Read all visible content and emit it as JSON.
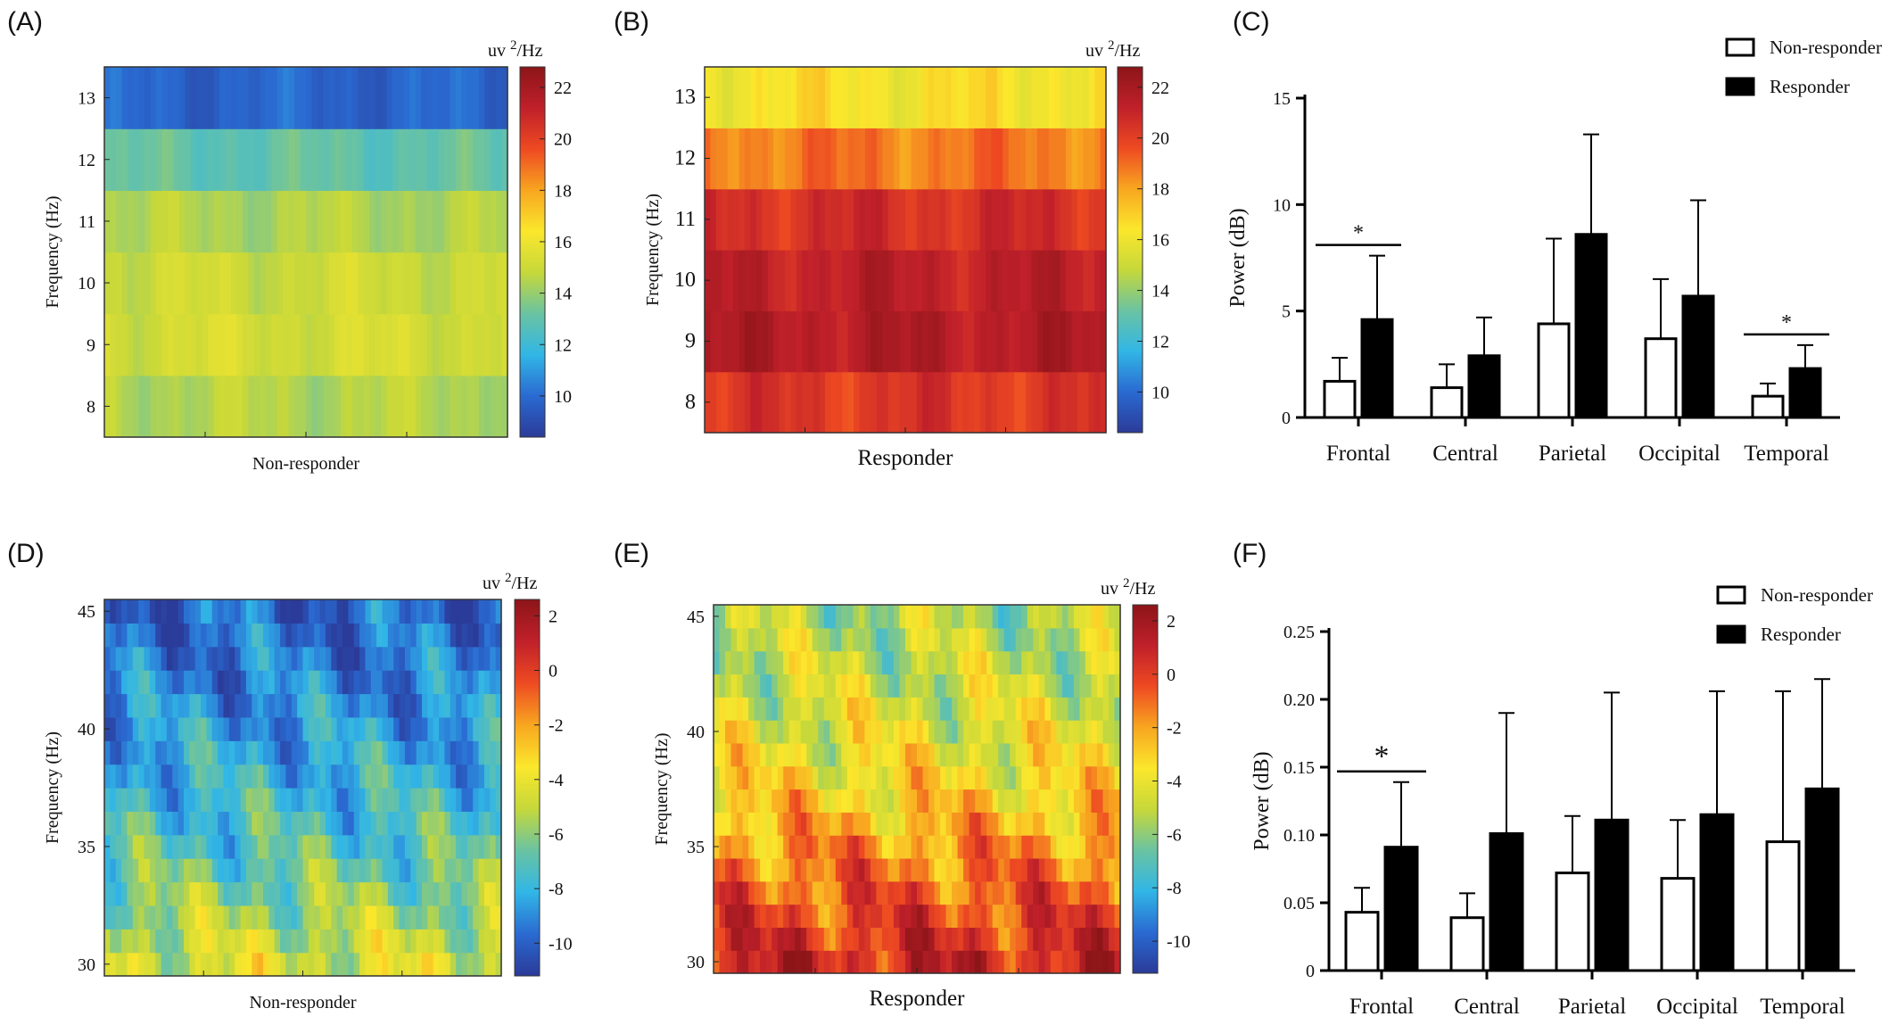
{
  "chart_data": [
    {
      "panel": "(A)",
      "type": "heatmap",
      "xlabel": "Non-responder",
      "ylabel": "Frequency (Hz)",
      "y_categories": [
        8,
        9,
        10,
        11,
        12,
        13
      ],
      "row_values": [
        14.5,
        15.2,
        15.0,
        14.4,
        13.0,
        9.8
      ],
      "colorbar": {
        "unit_prefix": "uv",
        "unit_sup": "2",
        "unit_suffix": "/Hz",
        "ticks": [
          10,
          12,
          14,
          16,
          18,
          20,
          22
        ],
        "range": [
          8.4,
          22.8
        ]
      },
      "colormap": [
        "#2b3b99",
        "#2a6ad1",
        "#31b6e6",
        "#6ac3a2",
        "#c6d83a",
        "#fbe72c",
        "#f8a620",
        "#ee4a22",
        "#c0202a",
        "#8c1518"
      ]
    },
    {
      "panel": "(B)",
      "type": "heatmap",
      "xlabel": "Responder",
      "ylabel": "Frequency (Hz)",
      "y_categories": [
        8,
        9,
        10,
        11,
        12,
        13
      ],
      "row_values": [
        20.3,
        21.6,
        21.3,
        20.6,
        18.8,
        16.4
      ],
      "colorbar": {
        "unit_prefix": "uv",
        "unit_sup": "2",
        "unit_suffix": "/Hz",
        "ticks": [
          10,
          12,
          14,
          16,
          18,
          20,
          22
        ],
        "range": [
          8.4,
          22.8
        ]
      }
    },
    {
      "panel": "(C)",
      "type": "bar",
      "categories": [
        "Frontal",
        "Central",
        "Parietal",
        "Occipital",
        "Temporal"
      ],
      "ylabel": "Power (dB)",
      "ylim": [
        0,
        15
      ],
      "yticks": [
        0,
        5,
        10,
        15
      ],
      "legend": "top-right",
      "series": [
        {
          "name": "Non-responder",
          "fill": "#ffffff",
          "values": [
            1.7,
            1.4,
            4.4,
            3.7,
            1.0
          ],
          "errors": [
            1.1,
            1.1,
            4.0,
            2.8,
            0.6
          ]
        },
        {
          "name": "Responder",
          "fill": "#000000",
          "values": [
            4.6,
            2.9,
            8.6,
            5.7,
            2.3
          ],
          "errors": [
            3.0,
            1.8,
            4.7,
            4.5,
            1.1
          ]
        }
      ],
      "significance": [
        {
          "category": "Frontal",
          "mark": "*"
        },
        {
          "category": "Temporal",
          "mark": "*"
        }
      ]
    },
    {
      "panel": "(D)",
      "type": "heatmap",
      "xlabel": "Non-responder",
      "ylabel": "Frequency (Hz)",
      "y_range": [
        29.5,
        45.5
      ],
      "yticks": [
        30,
        35,
        40,
        45
      ],
      "row_values": [
        -4.6,
        -5.0,
        -5.6,
        -6.1,
        -6.6,
        -7.1,
        -7.4,
        -7.7,
        -8.0,
        -8.3,
        -8.6,
        -8.9,
        -9.2,
        -9.4,
        -9.6,
        -9.8
      ],
      "colorbar": {
        "unit_prefix": "uv",
        "unit_sup": "2",
        "unit_suffix": "/Hz",
        "ticks": [
          2,
          0,
          -2,
          -4,
          -6,
          -8,
          -10
        ],
        "range": [
          -11.2,
          2.6
        ]
      }
    },
    {
      "panel": "(E)",
      "type": "heatmap",
      "xlabel": "Responder",
      "ylabel": "Frequency (Hz)",
      "y_range": [
        29.5,
        45.5
      ],
      "yticks": [
        30,
        35,
        40,
        45
      ],
      "row_values": [
        0.8,
        0.3,
        -0.2,
        -0.7,
        -1.2,
        -1.7,
        -2.4,
        -3.0,
        -3.5,
        -3.9,
        -4.2,
        -4.5,
        -4.8,
        -5.0,
        -5.2,
        -5.4
      ],
      "colorbar": {
        "unit_prefix": "uv",
        "unit_sup": "2",
        "unit_suffix": "/Hz",
        "ticks": [
          2,
          0,
          -2,
          -4,
          -6,
          -8,
          -10
        ],
        "range": [
          -11.2,
          2.6
        ]
      }
    },
    {
      "panel": "(F)",
      "type": "bar",
      "categories": [
        "Frontal",
        "Central",
        "Parietal",
        "Occipital",
        "Temporal"
      ],
      "ylabel": "Power (dB)",
      "ylim": [
        0,
        0.25
      ],
      "yticks": [
        "0",
        "0.05",
        "0.10",
        "0.15",
        "0.20",
        "0.25"
      ],
      "legend": "top-right",
      "series": [
        {
          "name": "Non-responder",
          "fill": "#ffffff",
          "values": [
            0.043,
            0.039,
            0.072,
            0.068,
            0.095
          ],
          "errors": [
            0.018,
            0.018,
            0.042,
            0.043,
            0.111
          ]
        },
        {
          "name": "Responder",
          "fill": "#000000",
          "values": [
            0.091,
            0.101,
            0.111,
            0.115,
            0.134
          ],
          "errors": [
            0.048,
            0.089,
            0.094,
            0.091,
            0.081
          ]
        }
      ],
      "significance": [
        {
          "category": "Frontal",
          "mark": "*"
        }
      ]
    }
  ]
}
